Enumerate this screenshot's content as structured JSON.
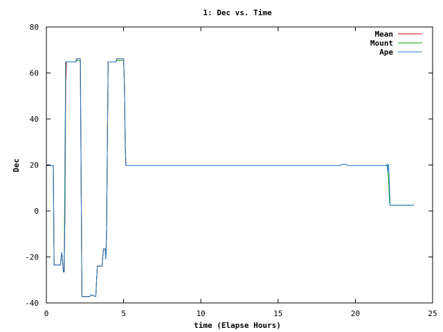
{
  "chart_data": {
    "type": "line",
    "title": "1: Dec vs. Time",
    "xlabel": "time (Elapse Hours)",
    "ylabel": "Dec",
    "xlim": [
      0,
      25
    ],
    "ylim": [
      -40,
      80
    ],
    "xticks": [
      0,
      5,
      10,
      15,
      20,
      25
    ],
    "yticks": [
      -40,
      -20,
      0,
      20,
      40,
      60,
      80
    ],
    "grid": false,
    "legend_position": "top-right",
    "series": [
      {
        "name": "Mean",
        "color": "#cc0000",
        "x": [
          0.0,
          0.45,
          0.5,
          0.9,
          1.0,
          1.05,
          1.1,
          1.15,
          1.2,
          1.25,
          1.3,
          1.35,
          1.5,
          1.9,
          1.95,
          2.2,
          2.25,
          2.3,
          2.35,
          2.45,
          2.8,
          2.9,
          3.2,
          3.25,
          3.3,
          3.4,
          3.6,
          3.7,
          3.8,
          3.85,
          3.9,
          3.95,
          4.0,
          4.1,
          4.5,
          4.55,
          4.8,
          5.0,
          5.05,
          5.1,
          5.15,
          5.2,
          14.5
        ],
        "y": [
          19.7,
          19.7,
          -23.5,
          -23.5,
          -18,
          -22,
          -26.5,
          -26.5,
          -3,
          55,
          64.8,
          64.8,
          64.8,
          64.8,
          66.2,
          66.2,
          14,
          -37.2,
          -37.2,
          -37.2,
          -37.2,
          -36.5,
          -37.2,
          -30,
          -24,
          -24,
          -24,
          -16.5,
          -16.5,
          -21,
          -7,
          30,
          64.8,
          64.8,
          64.8,
          66.2,
          66.2,
          66.2,
          55,
          30,
          19.7,
          19.7,
          19.7
        ]
      },
      {
        "name": "Mount",
        "color": "#00a000",
        "x": [
          0.0,
          0.45,
          0.5,
          0.9,
          1.0,
          1.05,
          1.1,
          1.15,
          1.2,
          1.25,
          1.3,
          1.35,
          1.5,
          1.9,
          1.95,
          2.2,
          2.25,
          2.3,
          2.35,
          2.45,
          2.8,
          2.9,
          3.2,
          3.25,
          3.3,
          3.4,
          3.6,
          3.7,
          3.8,
          3.85,
          3.9,
          3.95,
          4.0,
          4.1,
          4.5,
          4.55,
          4.8,
          5.0,
          5.05,
          5.1,
          5.15,
          5.2,
          19.0,
          19.1,
          19.4,
          19.5,
          22.0,
          22.05,
          22.1,
          22.15,
          22.2,
          22.25,
          23.8
        ],
        "y": [
          19.7,
          19.7,
          -23.5,
          -23.5,
          -18,
          -22,
          -26.5,
          -26.5,
          20,
          64.8,
          64.8,
          64.8,
          64.8,
          64.8,
          65.5,
          65.5,
          14,
          -37.2,
          -37.2,
          -37.2,
          -37.2,
          -36.5,
          -37.2,
          -30,
          -24,
          -24,
          -24,
          -16.5,
          -16.5,
          -21,
          -7,
          30,
          64.8,
          64.8,
          64.8,
          65.5,
          65.5,
          65.5,
          55,
          30,
          19.7,
          19.7,
          19.7,
          20.3,
          20.3,
          19.7,
          19.7,
          20.2,
          17,
          14,
          5,
          2.5,
          2.5
        ]
      },
      {
        "name": "Ape",
        "color": "#1f78c8",
        "x": [
          0.0,
          0.45,
          0.5,
          0.9,
          1.0,
          1.05,
          1.1,
          1.15,
          1.2,
          1.25,
          1.3,
          1.35,
          1.5,
          1.9,
          1.95,
          2.2,
          2.25,
          2.3,
          2.35,
          2.45,
          2.8,
          2.9,
          3.2,
          3.25,
          3.3,
          3.4,
          3.6,
          3.7,
          3.8,
          3.85,
          3.9,
          3.95,
          4.0,
          4.1,
          4.5,
          4.55,
          4.8,
          5.0,
          5.05,
          5.1,
          5.15,
          5.2,
          19.0,
          19.1,
          19.4,
          19.5,
          22.0,
          22.05,
          22.1,
          22.15,
          22.2,
          22.25,
          23.8
        ],
        "y": [
          19.7,
          19.7,
          -23.5,
          -23.5,
          -18,
          -22,
          -26.5,
          -26.5,
          -3,
          64.8,
          64.8,
          64.8,
          64.8,
          64.8,
          66.2,
          66.2,
          14,
          -37.2,
          -37.2,
          -37.2,
          -37.2,
          -36.5,
          -37.2,
          -30,
          -24,
          -24,
          -24,
          -16.5,
          -16.5,
          -21,
          -7,
          30,
          64.8,
          64.8,
          64.8,
          66.2,
          66.2,
          66.2,
          55,
          30,
          19.7,
          19.7,
          19.7,
          20.3,
          20.3,
          19.7,
          19.7,
          20.2,
          17,
          20.5,
          12,
          2.5,
          2.5
        ]
      }
    ]
  }
}
